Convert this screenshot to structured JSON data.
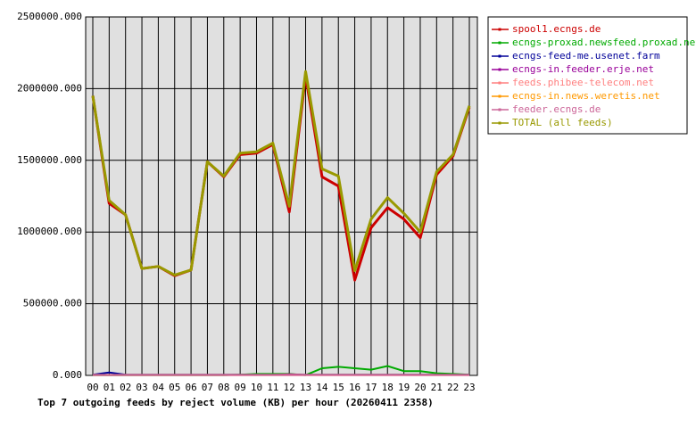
{
  "chart_data": {
    "type": "line",
    "title": "Top 7 outgoing feeds by reject volume (KB) per hour (20260411 2358)",
    "categories": [
      "00",
      "01",
      "02",
      "03",
      "04",
      "05",
      "06",
      "07",
      "08",
      "09",
      "10",
      "11",
      "12",
      "13",
      "14",
      "15",
      "16",
      "17",
      "18",
      "19",
      "20",
      "21",
      "22",
      "23"
    ],
    "ylim": [
      0,
      2500000
    ],
    "yticks": [
      {
        "value": 0,
        "label": "0.000"
      },
      {
        "value": 500000,
        "label": "500000.000"
      },
      {
        "value": 1000000,
        "label": "1000000.000"
      },
      {
        "value": 1500000,
        "label": "1500000.000"
      },
      {
        "value": 2000000,
        "label": "2000000.000"
      },
      {
        "value": 2500000,
        "label": "2500000.000"
      }
    ],
    "grid": true,
    "legend": "right",
    "series": [
      {
        "name": "spool1.ecngs.de",
        "color": "#cc0000",
        "values": [
          1950000,
          1200000,
          1120000,
          745000,
          760000,
          695000,
          735000,
          1490000,
          1385000,
          1540000,
          1550000,
          1610000,
          1140000,
          2090000,
          1385000,
          1320000,
          665000,
          1030000,
          1170000,
          1090000,
          960000,
          1400000,
          1530000,
          1870000
        ]
      },
      {
        "name": "ecngs-proxad.newsfeed.proxad.net",
        "color": "#00aa00",
        "values": [
          2000,
          2000,
          2000,
          2000,
          2000,
          2000,
          2000,
          2000,
          2000,
          5000,
          10000,
          10000,
          10000,
          2000,
          50000,
          60000,
          50000,
          40000,
          65000,
          30000,
          30000,
          15000,
          10000,
          5000
        ]
      },
      {
        "name": "ecngs-feed-me.usenet.farm",
        "color": "#000099",
        "values": [
          5000,
          20000,
          5000,
          5000,
          5000,
          5000,
          5000,
          5000,
          5000,
          5000,
          5000,
          5000,
          5000,
          5000,
          5000,
          5000,
          5000,
          5000,
          5000,
          5000,
          5000,
          5000,
          5000,
          5000
        ]
      },
      {
        "name": "ecngs-in.feeder.erje.net",
        "color": "#990099",
        "values": [
          3000,
          3000,
          3000,
          3000,
          3000,
          3000,
          3000,
          3000,
          3000,
          3000,
          3000,
          3000,
          8000,
          3000,
          3000,
          3000,
          3000,
          3000,
          3000,
          3000,
          3000,
          3000,
          3000,
          3000
        ]
      },
      {
        "name": "feeds.phibee-telecom.net",
        "color": "#ff8080",
        "values": [
          2000,
          2000,
          2000,
          2000,
          2000,
          2000,
          2000,
          2000,
          2000,
          2000,
          2000,
          2000,
          2000,
          2000,
          2000,
          2000,
          2000,
          2000,
          2000,
          2000,
          2000,
          2000,
          2000,
          2000
        ]
      },
      {
        "name": "ecngs-in.news.weretis.net",
        "color": "#ff9900",
        "values": [
          4000,
          4000,
          4000,
          4000,
          4000,
          4000,
          4000,
          4000,
          4000,
          4000,
          4000,
          4000,
          4000,
          4000,
          4000,
          4000,
          4000,
          4000,
          4000,
          4000,
          4000,
          4000,
          4000,
          4000
        ]
      },
      {
        "name": "feeder.ecngs.de",
        "color": "#cc6699",
        "values": [
          3000,
          3000,
          3000,
          3000,
          3000,
          3000,
          3000,
          3000,
          3000,
          3000,
          3000,
          3000,
          3000,
          3000,
          3000,
          3000,
          3000,
          3000,
          3000,
          3000,
          3000,
          3000,
          3000,
          3000
        ]
      },
      {
        "name": "TOTAL (all feeds)",
        "color": "#999900",
        "values": [
          1950000,
          1220000,
          1120000,
          745000,
          760000,
          700000,
          735000,
          1490000,
          1390000,
          1550000,
          1560000,
          1620000,
          1180000,
          2120000,
          1440000,
          1390000,
          730000,
          1090000,
          1240000,
          1130000,
          1000000,
          1420000,
          1540000,
          1880000
        ]
      }
    ]
  }
}
